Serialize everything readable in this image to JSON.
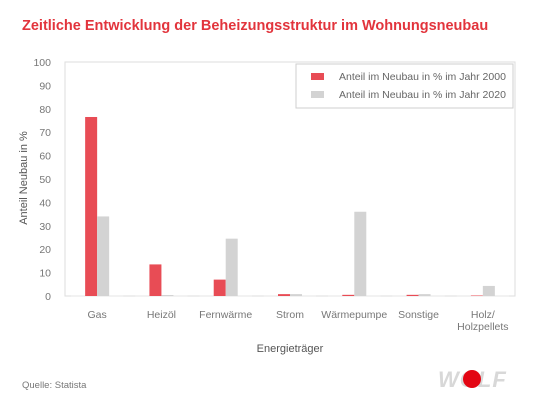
{
  "header": {
    "title": "Zeitliche Entwicklung der Beheizungsstruktur im Wohnungsneubau"
  },
  "footer": {
    "source": "Quelle: Statista",
    "logo_text": "WOLF"
  },
  "colors": {
    "series_2000": "#e84c55",
    "series_2020": "#d3d3d3",
    "title": "#e2343c",
    "logo_dot": "#e30613"
  },
  "chart_data": {
    "type": "bar",
    "title": "Zeitliche Entwicklung der Beheizungsstruktur im Wohnungsneubau",
    "xlabel": "Energieträger",
    "ylabel": "Anteil Neubau in %",
    "ylim": [
      0,
      100
    ],
    "yticks": [
      0,
      10,
      20,
      30,
      40,
      50,
      60,
      70,
      80,
      90,
      100
    ],
    "categories": [
      [
        "Gas"
      ],
      [
        "Heizöl"
      ],
      [
        "Fernwärme"
      ],
      [
        "Strom"
      ],
      [
        "Wärmepumpe"
      ],
      [
        "Sonstige"
      ],
      [
        "Holz/",
        "Holzpellets"
      ]
    ],
    "series": [
      {
        "name": "Anteil im Neubau in % im Jahr 2000",
        "color": "#e84c55",
        "values": [
          76.5,
          13.5,
          7,
          0.8,
          0.5,
          0.5,
          0
        ]
      },
      {
        "name": "Anteil im Neubau in % im Jahr 2020",
        "color": "#d3d3d3",
        "values": [
          34,
          0.1,
          24.5,
          0.8,
          36,
          0.8,
          4.3
        ]
      }
    ],
    "legend": "top-right",
    "grid": false
  }
}
